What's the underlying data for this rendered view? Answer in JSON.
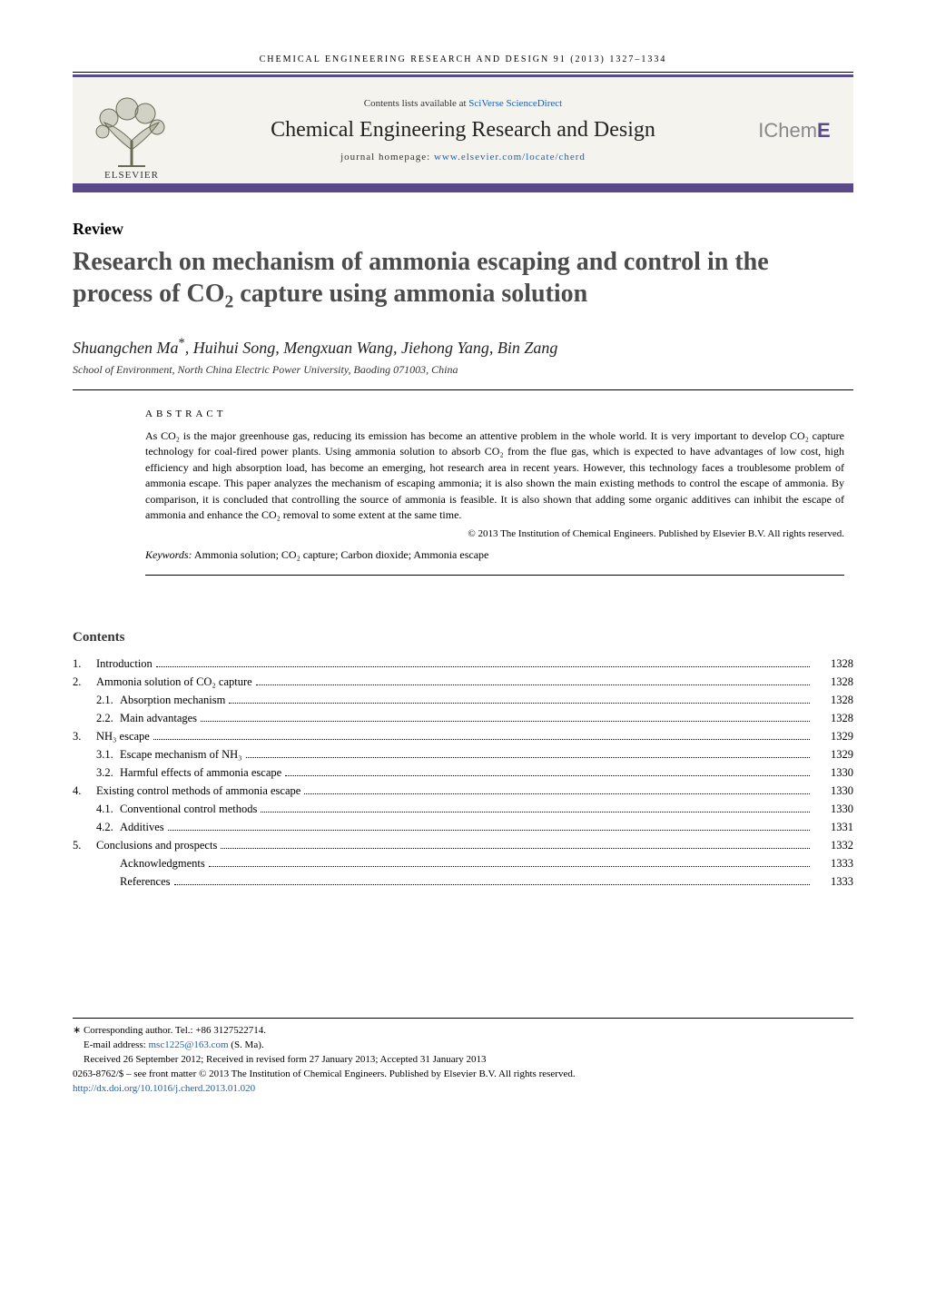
{
  "running_head": "CHEMICAL ENGINEERING RESEARCH AND DESIGN 91 (2013) 1327–1334",
  "header": {
    "contents_available": "Contents lists available at ",
    "sciencedirect": "SciVerse ScienceDirect",
    "journal_title": "Chemical Engineering Research and Design",
    "homepage_label": "journal homepage: ",
    "homepage_url": "www.elsevier.com/locate/cherd",
    "elsevier_label": "ELSEVIER",
    "icheme_prefix": "IChem",
    "icheme_suffix": "E"
  },
  "article": {
    "type": "Review",
    "title_pre": "Research on mechanism of ammonia escaping and control in the process of CO",
    "title_sub": "2",
    "title_post": " capture using ammonia solution",
    "authors": "Shuangchen Ma",
    "authors_rest": ", Huihui Song, Mengxuan Wang, Jiehong Yang, Bin Zang",
    "corr_mark": "*",
    "affiliation": "School of Environment, North China Electric Power University, Baoding 071003, China"
  },
  "abstract": {
    "head": "ABSTRACT",
    "text": "As CO₂ is the major greenhouse gas, reducing its emission has become an attentive problem in the whole world. It is very important to develop CO₂ capture technology for coal-fired power plants. Using ammonia solution to absorb CO₂ from the flue gas, which is expected to have advantages of low cost, high efficiency and high absorption load, has become an emerging, hot research area in recent years. However, this technology faces a troublesome problem of ammonia escape. This paper analyzes the mechanism of escaping ammonia; it is also shown the main existing methods to control the escape of ammonia. By comparison, it is concluded that controlling the source of ammonia is feasible. It is also shown that adding some organic additives can inhibit the escape of ammonia and enhance the CO₂ removal to some extent at the same time.",
    "copyright": "© 2013 The Institution of Chemical Engineers. Published by Elsevier B.V. All rights reserved.",
    "keywords_label": "Keywords:",
    "keywords": " Ammonia solution; CO₂ capture; Carbon dioxide; Ammonia escape"
  },
  "toc": {
    "head": "Contents",
    "items": [
      {
        "num": "1.",
        "label": "Introduction",
        "page": "1328",
        "level": 0
      },
      {
        "num": "2.",
        "label": "Ammonia solution of CO₂ capture",
        "page": "1328",
        "level": 0
      },
      {
        "num": "2.1.",
        "label": "Absorption mechanism",
        "page": "1328",
        "level": 1
      },
      {
        "num": "2.2.",
        "label": "Main advantages",
        "page": "1328",
        "level": 1
      },
      {
        "num": "3.",
        "label": "NH₃ escape",
        "page": "1329",
        "level": 0
      },
      {
        "num": "3.1.",
        "label": "Escape mechanism of NH₃",
        "page": "1329",
        "level": 1
      },
      {
        "num": "3.2.",
        "label": "Harmful effects of ammonia escape",
        "page": "1330",
        "level": 1
      },
      {
        "num": "4.",
        "label": "Existing control methods of ammonia escape",
        "page": "1330",
        "level": 0
      },
      {
        "num": "4.1.",
        "label": "Conventional control methods",
        "page": "1330",
        "level": 1
      },
      {
        "num": "4.2.",
        "label": "Additives",
        "page": "1331",
        "level": 1
      },
      {
        "num": "5.",
        "label": "Conclusions and prospects",
        "page": "1332",
        "level": 0
      },
      {
        "num": "",
        "label": "Acknowledgments",
        "page": "1333",
        "level": 1
      },
      {
        "num": "",
        "label": "References",
        "page": "1333",
        "level": 1
      }
    ]
  },
  "footer": {
    "corr": "∗ Corresponding author. Tel.: +86 3127522714.",
    "email_label": "E-mail address: ",
    "email": "msc1225@163.com",
    "email_who": " (S. Ma).",
    "received": "Received 26 September 2012; Received in revised form 27 January 2013; Accepted 31 January 2013",
    "front_matter": "0263-8762/$ – see front matter © 2013 The Institution of Chemical Engineers. Published by Elsevier B.V. All rights reserved.",
    "doi": "http://dx.doi.org/10.1016/j.cherd.2013.01.020"
  },
  "colors": {
    "band_border": "#5a4a8a",
    "band_bg": "#f5f3ed",
    "link": "#1a5fb4",
    "title_gray": "#4c4c4c"
  }
}
